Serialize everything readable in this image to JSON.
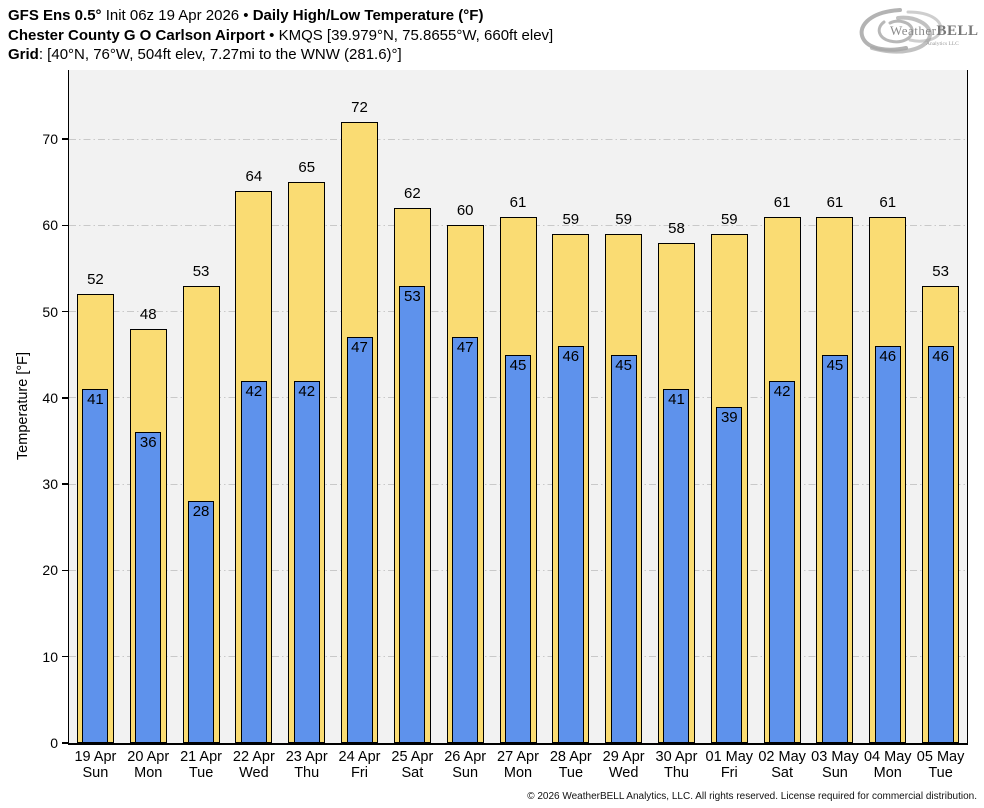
{
  "header": {
    "line1": {
      "bold1": "GFS Ens 0.5°",
      "regular1": " Init 06z 19 Apr 2026 • ",
      "bold2": "Daily High/Low Temperature (°F)"
    },
    "line2": {
      "bold1": "Chester County G O Carlson Airport",
      "regular1": " • KMQS [39.979°N, 75.8655°W, 660ft elev]"
    },
    "line3": {
      "bold1": "Grid",
      "regular1": ": [40°N, 76°W, 504ft elev, 7.27mi to the WNW (281.6)°]"
    }
  },
  "logo": {
    "brand_prefix": "Weather",
    "brand_suffix": "BELL",
    "subtext": "Analytics LLC"
  },
  "footer": {
    "copyright": "© 2026 WeatherBELL Analytics, LLC. All rights reserved. License required for commercial distribution."
  },
  "chart_data": {
    "type": "bar",
    "title": "Daily High/Low Temperature (°F)",
    "subtitle": "GFS Ens 0.5° Init 06z 19 Apr 2026 — Chester County G O Carlson Airport (KMQS)",
    "xlabel": "",
    "ylabel": "Temperature [°F]",
    "ylim": [
      0,
      78
    ],
    "yticks": [
      0,
      10,
      20,
      30,
      40,
      50,
      60,
      70
    ],
    "grid": "horizontal dash-dot",
    "legend_position": "none",
    "categories_date": [
      "19 Apr",
      "20 Apr",
      "21 Apr",
      "22 Apr",
      "23 Apr",
      "24 Apr",
      "25 Apr",
      "26 Apr",
      "27 Apr",
      "28 Apr",
      "29 Apr",
      "30 Apr",
      "01 May",
      "02 May",
      "03 May",
      "04 May",
      "05 May"
    ],
    "categories_day": [
      "Sun",
      "Mon",
      "Tue",
      "Wed",
      "Thu",
      "Fri",
      "Sat",
      "Sun",
      "Mon",
      "Tue",
      "Wed",
      "Thu",
      "Fri",
      "Sat",
      "Sun",
      "Mon",
      "Tue"
    ],
    "series": [
      {
        "name": "High",
        "color": "#FADC73",
        "values": [
          52,
          48,
          53,
          64,
          65,
          72,
          62,
          60,
          61,
          59,
          59,
          58,
          59,
          61,
          61,
          61,
          53
        ]
      },
      {
        "name": "Low",
        "color": "#5E92EC",
        "values": [
          41,
          36,
          28,
          42,
          42,
          47,
          53,
          47,
          45,
          46,
          45,
          41,
          39,
          42,
          45,
          46,
          46
        ]
      }
    ],
    "colors": {
      "plot_background": "#F2F2F2",
      "gridline": "#C9C9C9",
      "bar_outline": "#000000",
      "value_label": "#000000"
    }
  }
}
